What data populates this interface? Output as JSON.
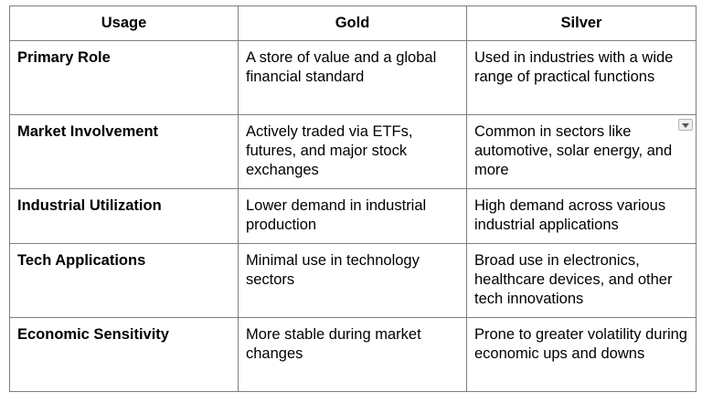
{
  "table": {
    "headers": [
      "Usage",
      "Gold",
      "Silver"
    ],
    "rows": [
      {
        "usage": "Primary Role",
        "gold": "A store of value and a global financial standard",
        "silver": "Used in industries with a wide range of practical functions"
      },
      {
        "usage": "Market Involvement",
        "gold": "Actively traded via ETFs, futures, and major stock exchanges",
        "silver": "Common in sectors like automotive, solar energy, and more"
      },
      {
        "usage": "Industrial Utilization",
        "gold": "Lower demand in industrial production",
        "silver": "High demand across various industrial applications"
      },
      {
        "usage": "Tech Applications",
        "gold": "Minimal use in technology sectors",
        "silver": "Broad use in electronics, healthcare devices, and other tech innovations"
      },
      {
        "usage": "Economic Sensitivity",
        "gold": "More stable during market changes",
        "silver": "Prone to greater volatility during economic ups and downs"
      }
    ]
  },
  "icons": {
    "cell_menu": "chevron-down-icon"
  },
  "colors": {
    "border": "#7f7f7f",
    "text": "#000000",
    "background": "#ffffff"
  }
}
